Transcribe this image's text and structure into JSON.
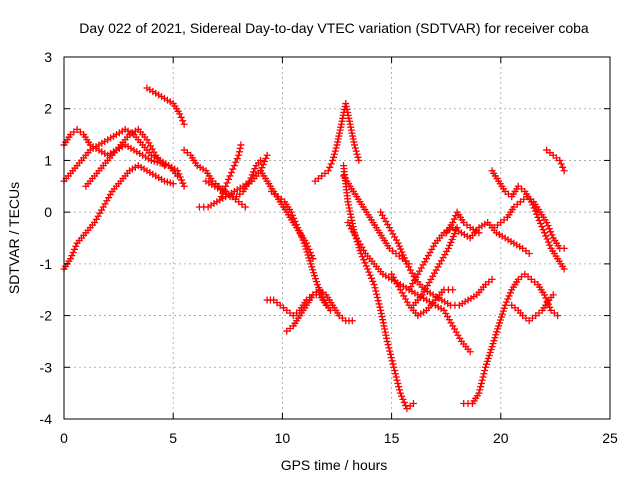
{
  "chart_data": {
    "type": "scatter",
    "title": "Day 022 of 2021, Sidereal Day-to-day VTEC variation (SDTVAR) for receiver coba",
    "xlabel": "GPS time / hours",
    "ylabel": "SDTVAR / TECUs",
    "xlim": [
      0,
      25
    ],
    "ylim": [
      -4,
      3
    ],
    "xticks": [
      "0",
      "5",
      "10",
      "15",
      "20",
      "25"
    ],
    "yticks": [
      "3",
      "2",
      "1",
      "0",
      "-1",
      "-2",
      "-3",
      "-4"
    ],
    "grid": true,
    "marker": "plus",
    "color": "#ff0000",
    "series": [
      {
        "x": [
          0.0,
          0.3,
          0.6,
          0.9,
          1.2,
          1.6,
          2.0,
          2.4,
          2.8,
          3.2,
          3.6,
          4.0,
          4.4,
          4.8,
          5.2
        ],
        "y": [
          1.3,
          1.5,
          1.6,
          1.5,
          1.3,
          1.2,
          1.1,
          1.2,
          1.3,
          1.2,
          1.1,
          1.0,
          0.95,
          0.9,
          0.7
        ]
      },
      {
        "x": [
          0.0,
          0.4,
          0.8,
          1.2,
          1.6,
          2.0,
          2.4,
          2.8,
          3.2,
          3.6,
          4.0,
          4.4,
          4.8,
          5.2,
          5.5
        ],
        "y": [
          0.6,
          0.8,
          1.0,
          1.2,
          1.3,
          1.4,
          1.5,
          1.6,
          1.5,
          1.3,
          1.1,
          1.0,
          0.9,
          0.8,
          0.5
        ]
      },
      {
        "x": [
          0.0,
          0.3,
          0.6,
          1.0,
          1.4,
          1.8,
          2.2,
          2.6,
          3.0,
          3.4,
          3.8,
          4.2,
          4.6,
          5.0
        ],
        "y": [
          -1.1,
          -0.9,
          -0.6,
          -0.4,
          -0.2,
          0.1,
          0.4,
          0.6,
          0.8,
          0.9,
          0.8,
          0.7,
          0.6,
          0.55
        ]
      },
      {
        "x": [
          1.0,
          1.4,
          1.8,
          2.2,
          2.6,
          3.0,
          3.4,
          3.8,
          4.2,
          4.6
        ],
        "y": [
          0.5,
          0.7,
          0.9,
          1.1,
          1.3,
          1.5,
          1.6,
          1.4,
          1.1,
          0.9
        ]
      },
      {
        "x": [
          3.8,
          4.2,
          4.6,
          5.0,
          5.3,
          5.5
        ],
        "y": [
          2.4,
          2.3,
          2.2,
          2.1,
          1.9,
          1.7
        ]
      },
      {
        "x": [
          5.5,
          5.8,
          6.1,
          6.5,
          6.8,
          7.1,
          7.4,
          7.7,
          8.0,
          8.3
        ],
        "y": [
          1.2,
          1.1,
          0.9,
          0.8,
          0.6,
          0.5,
          0.4,
          0.3,
          0.2,
          0.1
        ]
      },
      {
        "x": [
          6.2,
          6.6,
          7.0,
          7.4,
          7.8,
          8.2,
          8.6,
          9.0,
          9.3
        ],
        "y": [
          0.1,
          0.1,
          0.2,
          0.3,
          0.4,
          0.5,
          0.6,
          0.8,
          1.1
        ]
      },
      {
        "x": [
          6.5,
          6.9,
          7.3,
          7.6,
          7.9,
          8.2,
          8.5,
          8.8,
          9.0
        ],
        "y": [
          0.6,
          0.5,
          0.4,
          0.3,
          0.3,
          0.4,
          0.6,
          0.9,
          1.0
        ]
      },
      {
        "x": [
          7.2,
          7.4,
          7.6,
          7.8,
          8.0,
          8.1
        ],
        "y": [
          0.3,
          0.5,
          0.7,
          0.9,
          1.1,
          1.3
        ]
      },
      {
        "x": [
          9.0,
          9.3,
          9.6,
          9.9,
          10.2,
          10.5,
          10.8,
          11.1,
          11.4
        ],
        "y": [
          0.8,
          0.6,
          0.4,
          0.2,
          0.0,
          -0.2,
          -0.4,
          -0.6,
          -0.9
        ]
      },
      {
        "x": [
          9.5,
          9.8,
          10.1,
          10.4,
          10.7,
          11.0,
          11.3,
          11.6,
          11.9,
          12.2
        ],
        "y": [
          0.4,
          0.3,
          0.2,
          0.0,
          -0.3,
          -0.6,
          -1.0,
          -1.4,
          -1.7,
          -1.9
        ]
      },
      {
        "x": [
          9.3,
          9.6,
          9.9,
          10.2,
          10.5,
          10.8,
          11.1,
          11.4,
          11.7,
          12.0
        ],
        "y": [
          -1.7,
          -1.7,
          -1.8,
          -1.9,
          -2.0,
          -1.9,
          -1.7,
          -1.6,
          -1.6,
          -1.8
        ]
      },
      {
        "x": [
          10.2,
          10.5,
          10.8,
          11.1,
          11.4,
          11.7,
          12.0,
          12.3,
          12.6,
          12.9,
          13.2
        ],
        "y": [
          -2.3,
          -2.2,
          -2.0,
          -1.8,
          -1.6,
          -1.5,
          -1.6,
          -1.8,
          -2.0,
          -2.1,
          -2.1
        ]
      },
      {
        "x": [
          11.5,
          11.8,
          12.1,
          12.3,
          12.5,
          12.7,
          12.9,
          13.1,
          13.3,
          13.5
        ],
        "y": [
          0.6,
          0.7,
          0.8,
          1.0,
          1.3,
          1.7,
          2.1,
          1.7,
          1.3,
          1.0
        ]
      },
      {
        "x": [
          12.8,
          13.1,
          13.4,
          13.7,
          14.0,
          14.3,
          14.6,
          14.9,
          15.2,
          15.5,
          15.8
        ],
        "y": [
          0.7,
          0.5,
          0.3,
          0.1,
          -0.1,
          -0.3,
          -0.5,
          -0.7,
          -0.8,
          -0.9,
          -1.0
        ]
      },
      {
        "x": [
          12.8,
          13.0,
          13.3,
          13.6,
          13.9,
          14.2,
          14.5,
          14.8,
          15.1,
          15.4,
          15.7,
          16.0
        ],
        "y": [
          0.9,
          0.2,
          -0.4,
          -0.8,
          -1.1,
          -1.4,
          -1.9,
          -2.5,
          -3.0,
          -3.5,
          -3.8,
          -3.7
        ]
      },
      {
        "x": [
          13.0,
          13.4,
          13.8,
          14.2,
          14.6,
          15.0,
          15.4,
          15.8,
          16.2,
          16.6,
          17.0,
          17.4,
          17.8,
          18.2,
          18.6
        ],
        "y": [
          -0.2,
          -0.5,
          -0.8,
          -1.0,
          -1.2,
          -1.3,
          -1.4,
          -1.5,
          -1.6,
          -1.7,
          -1.8,
          -1.9,
          -2.2,
          -2.5,
          -2.7
        ]
      },
      {
        "x": [
          14.5,
          14.9,
          15.3,
          15.7,
          16.1,
          16.5,
          16.9,
          17.3,
          17.7,
          18.1,
          18.5,
          18.9,
          19.3,
          19.6
        ],
        "y": [
          0.0,
          -0.3,
          -0.6,
          -1.0,
          -1.3,
          -1.5,
          -1.6,
          -1.7,
          -1.8,
          -1.8,
          -1.7,
          -1.6,
          -1.4,
          -1.3
        ]
      },
      {
        "x": [
          15.0,
          15.4,
          15.8,
          16.2,
          16.6,
          17.0,
          17.4,
          17.8
        ],
        "y": [
          -1.2,
          -1.5,
          -1.8,
          -2.0,
          -1.9,
          -1.7,
          -1.5,
          -1.5
        ]
      },
      {
        "x": [
          15.8,
          16.2,
          16.6,
          17.0,
          17.4,
          17.8,
          18.2,
          18.6,
          19.0,
          19.4,
          19.8,
          20.2,
          20.6,
          21.0,
          21.3
        ],
        "y": [
          -1.5,
          -1.2,
          -0.9,
          -0.6,
          -0.4,
          -0.3,
          -0.4,
          -0.5,
          -0.3,
          -0.2,
          -0.4,
          -0.5,
          -0.6,
          -0.7,
          -0.8
        ]
      },
      {
        "x": [
          16.0,
          16.4,
          16.8,
          17.2,
          17.6,
          18.0
        ],
        "y": [
          -1.8,
          -1.6,
          -1.3,
          -1.0,
          -0.7,
          -0.3
        ]
      },
      {
        "x": [
          17.5,
          17.8,
          18.0,
          18.3,
          18.6,
          19.0
        ],
        "y": [
          -0.4,
          -0.2,
          0.0,
          -0.2,
          -0.3,
          -0.4
        ]
      },
      {
        "x": [
          18.3,
          18.7,
          19.0,
          19.3,
          19.6,
          19.9,
          20.2,
          20.5,
          20.8,
          21.1,
          21.4,
          21.7,
          22.0,
          22.3,
          22.6
        ],
        "y": [
          -3.7,
          -3.7,
          -3.5,
          -3.0,
          -2.6,
          -2.2,
          -1.8,
          -1.5,
          -1.3,
          -1.2,
          -1.3,
          -1.4,
          -1.6,
          -1.9,
          -2.0
        ]
      },
      {
        "x": [
          19.6,
          19.9,
          20.2,
          20.5,
          20.8,
          21.1,
          21.4,
          21.7,
          22.0,
          22.3,
          22.6,
          22.9
        ],
        "y": [
          0.8,
          0.6,
          0.4,
          0.3,
          0.5,
          0.4,
          0.2,
          -0.1,
          -0.4,
          -0.7,
          -0.9,
          -1.1
        ]
      },
      {
        "x": [
          19.7,
          20.0,
          20.3,
          20.6,
          20.9,
          21.2,
          21.5,
          21.8,
          22.1,
          22.4,
          22.7,
          22.9
        ],
        "y": [
          -0.3,
          -0.2,
          -0.1,
          0.1,
          0.2,
          0.3,
          0.2,
          0.0,
          -0.2,
          -0.5,
          -0.7,
          -0.7
        ]
      },
      {
        "x": [
          20.5,
          20.8,
          21.0,
          21.3,
          21.6,
          21.9,
          22.2,
          22.4
        ],
        "y": [
          -1.8,
          -1.9,
          -2.0,
          -2.1,
          -2.0,
          -1.9,
          -1.7,
          -1.6
        ]
      },
      {
        "x": [
          22.1,
          22.4,
          22.7,
          22.9
        ],
        "y": [
          1.2,
          1.1,
          1.0,
          0.8
        ]
      }
    ]
  }
}
